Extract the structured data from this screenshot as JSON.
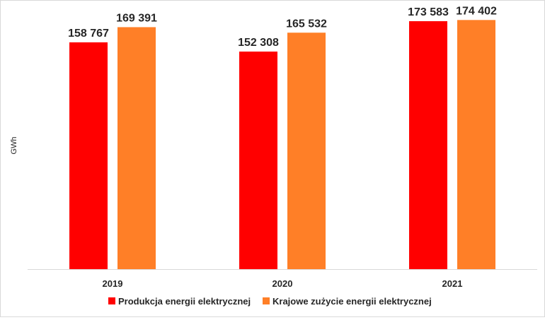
{
  "chart_data": {
    "type": "bar",
    "title": "",
    "xlabel": "",
    "ylabel": "GWh",
    "categories": [
      "2019",
      "2020",
      "2021"
    ],
    "series": [
      {
        "name": "Produkcja energii elektrycznej",
        "color": "#ff0000",
        "values": [
          158767,
          152308,
          173583
        ],
        "labels": [
          "158 767",
          "152 308",
          "173 583"
        ]
      },
      {
        "name": "Krajowe zużycie energii elektrycznej",
        "color": "#ff7f27",
        "values": [
          169391,
          165532,
          174402
        ],
        "labels": [
          "169 391",
          "165 532",
          "174 402"
        ]
      }
    ],
    "ylim": [
      0,
      180000
    ],
    "grid": false,
    "legend_position": "bottom"
  }
}
